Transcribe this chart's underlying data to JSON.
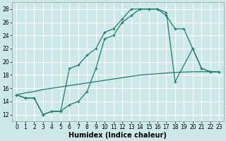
{
  "bg_color": "#cde8e8",
  "grid_color": "#b0d0d0",
  "line_color": "#217a6a",
  "xlabel": "Humidex (Indice chaleur)",
  "xlabel_fontsize": 7,
  "tick_fontsize": 5.5,
  "ylim": [
    11,
    29
  ],
  "xlim": [
    -0.5,
    23.5
  ],
  "yticks": [
    12,
    14,
    16,
    18,
    20,
    22,
    24,
    26,
    28
  ],
  "xticks": [
    0,
    1,
    2,
    3,
    4,
    5,
    6,
    7,
    8,
    9,
    10,
    11,
    12,
    13,
    14,
    15,
    16,
    17,
    18,
    19,
    20,
    21,
    22,
    23
  ],
  "curve1_x": [
    0,
    1,
    2,
    3,
    4,
    5,
    6,
    7,
    8,
    9,
    10,
    11,
    12,
    13,
    14,
    15,
    16,
    17,
    18,
    20,
    21,
    22,
    23
  ],
  "curve1_y": [
    15,
    14.5,
    14.5,
    12,
    12.5,
    12.5,
    13.5,
    14,
    15.5,
    19,
    23.5,
    24,
    26,
    27,
    28,
    28,
    28,
    27.5,
    17,
    22,
    19,
    18.5,
    18.5
  ],
  "curve2_x": [
    0,
    1,
    2,
    3,
    4,
    5,
    6,
    7,
    8,
    9,
    10,
    11,
    12,
    13,
    14,
    15,
    16,
    17,
    18,
    19,
    20,
    21,
    22,
    23
  ],
  "curve2_y": [
    15,
    14.5,
    14.5,
    12,
    12.5,
    12.5,
    19,
    19.5,
    21,
    22,
    24.5,
    25,
    26.5,
    28,
    28,
    28,
    28,
    27,
    25,
    25,
    22,
    19,
    18.5,
    18.5
  ],
  "curve3_x": [
    0,
    1,
    2,
    3,
    4,
    5,
    6,
    7,
    8,
    9,
    10,
    11,
    12,
    13,
    14,
    15,
    16,
    17,
    18,
    19,
    20,
    21,
    22,
    23
  ],
  "curve3_y": [
    15,
    15.3,
    15.5,
    15.8,
    16.0,
    16.2,
    16.4,
    16.6,
    16.8,
    17.0,
    17.2,
    17.4,
    17.6,
    17.8,
    18.0,
    18.1,
    18.2,
    18.3,
    18.4,
    18.45,
    18.5,
    18.5,
    18.5,
    18.5
  ]
}
